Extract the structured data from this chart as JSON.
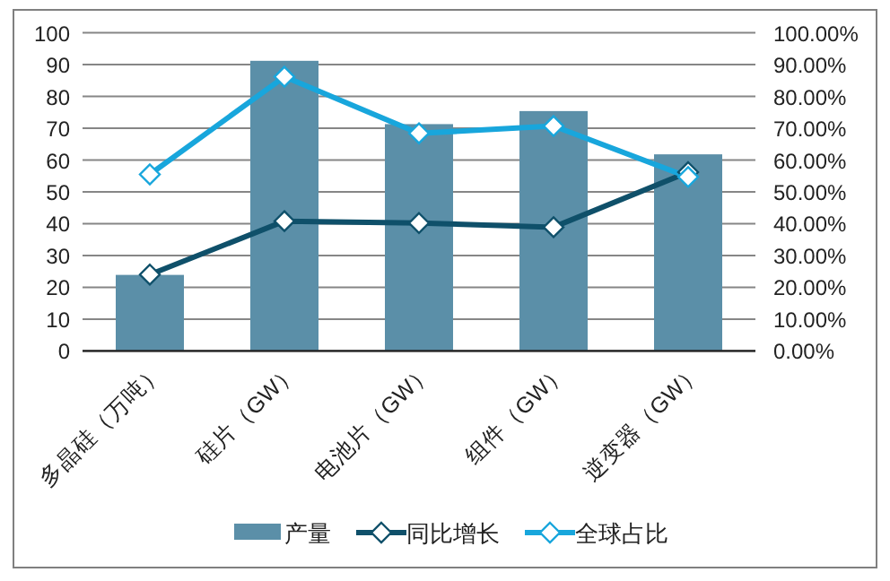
{
  "chart_data": {
    "type": "bar",
    "categories": [
      "多晶硅（万吨）",
      "硅片（GW）",
      "电池片（GW）",
      "组件（GW）",
      "逆变器（GW）"
    ],
    "series": [
      {
        "name": "产量",
        "color": "#5b8fa8",
        "values": [
          23.9,
          91.2,
          71.3,
          75.4,
          61.8
        ]
      },
      {
        "name": "同比增长",
        "type": "line",
        "axis": "y2",
        "color": "#0f506a",
        "marker": "diamond",
        "values": [
          0.24,
          0.408,
          0.402,
          0.389,
          0.562
        ]
      },
      {
        "name": "全球占比",
        "type": "line",
        "axis": "y2",
        "color": "#18a6dc",
        "marker": "diamond",
        "values": [
          0.555,
          0.862,
          0.684,
          0.707,
          0.547
        ]
      }
    ],
    "ylim": [
      0,
      100
    ],
    "yticks": [
      0,
      10,
      20,
      30,
      40,
      50,
      60,
      70,
      80,
      90,
      100
    ],
    "y2lim": [
      0,
      1
    ],
    "y2ticks": [
      {
        "value": 0,
        "label": "0.00%"
      },
      {
        "value": 0.1,
        "label": "10.00%"
      },
      {
        "value": 0.2,
        "label": "20.00%"
      },
      {
        "value": 0.3,
        "label": "30.00%"
      },
      {
        "value": 0.4,
        "label": "40.00%"
      },
      {
        "value": 0.5,
        "label": "50.00%"
      },
      {
        "value": 0.6,
        "label": "60.00%"
      },
      {
        "value": 0.7,
        "label": "70.00%"
      },
      {
        "value": 0.8,
        "label": "80.00%"
      },
      {
        "value": 0.9,
        "label": "90.00%"
      },
      {
        "value": 1,
        "label": "100.00%"
      }
    ],
    "grid": "y",
    "legend": "bottom"
  }
}
